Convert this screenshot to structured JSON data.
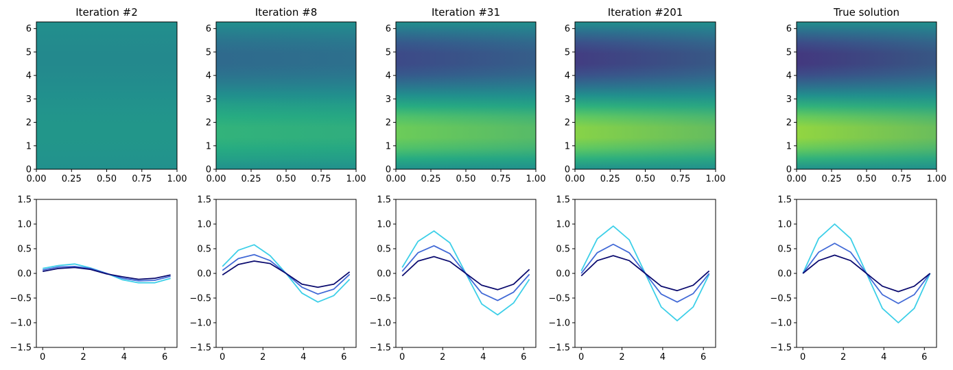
{
  "figure": {
    "description_colors": {
      "line_light": "#3ccfe8",
      "line_mid": "#4169d6",
      "line_dark": "#0a0a6e"
    }
  },
  "chart_data": [
    {
      "type": "heatmap",
      "title": "Iteration #2",
      "xlim": [
        0,
        1
      ],
      "ylim": [
        0,
        6.283
      ],
      "xticks": [
        "0.00",
        "0.25",
        "0.50",
        "0.75",
        "1.00"
      ],
      "yticks": [
        "0",
        "1",
        "2",
        "3",
        "4",
        "5",
        "6"
      ],
      "intensity": 0.08
    },
    {
      "type": "heatmap",
      "title": "Iteration #8",
      "xlim": [
        0,
        1
      ],
      "ylim": [
        0,
        6.283
      ],
      "xticks": [
        "0.00",
        "0.25",
        "0.50",
        "0.75",
        "1.00"
      ],
      "yticks": [
        "0",
        "1",
        "2",
        "3",
        "4",
        "5",
        "6"
      ],
      "intensity": 0.45
    },
    {
      "type": "heatmap",
      "title": "Iteration #31",
      "xlim": [
        0,
        1
      ],
      "ylim": [
        0,
        6.283
      ],
      "xticks": [
        "0.00",
        "0.25",
        "0.50",
        "0.75",
        "1.00"
      ],
      "yticks": [
        "0",
        "1",
        "2",
        "3",
        "4",
        "5",
        "6"
      ],
      "intensity": 0.82
    },
    {
      "type": "heatmap",
      "title": "Iteration #201",
      "xlim": [
        0,
        1
      ],
      "ylim": [
        0,
        6.283
      ],
      "xticks": [
        "0.00",
        "0.25",
        "0.50",
        "0.75",
        "1.00"
      ],
      "yticks": [
        "0",
        "1",
        "2",
        "3",
        "4",
        "5",
        "6"
      ],
      "intensity": 0.95
    },
    {
      "type": "heatmap",
      "title": "True solution",
      "xlim": [
        0,
        1
      ],
      "ylim": [
        0,
        6.283
      ],
      "xticks": [
        "0.00",
        "0.25",
        "0.50",
        "0.75",
        "1.00"
      ],
      "yticks": [
        "0",
        "1",
        "2",
        "3",
        "4",
        "5",
        "6"
      ],
      "intensity": 1.0
    },
    {
      "type": "line",
      "title": "",
      "xlim": [
        -0.31,
        6.6
      ],
      "ylim": [
        -1.5,
        1.5
      ],
      "xticks": [
        "0",
        "2",
        "4",
        "6"
      ],
      "yticks": [
        "−1.5",
        "−1.0",
        "−0.5",
        "0.0",
        "0.5",
        "1.0",
        "1.5"
      ],
      "x": [
        0,
        0.785,
        1.571,
        2.356,
        3.142,
        3.927,
        4.712,
        5.498,
        6.283
      ],
      "series": [
        {
          "name": "light",
          "color": "#3ccfe8",
          "values": [
            0.1,
            0.16,
            0.19,
            0.11,
            0.0,
            -0.13,
            -0.19,
            -0.19,
            -0.1
          ]
        },
        {
          "name": "mid",
          "color": "#4169d6",
          "values": [
            0.07,
            0.13,
            0.14,
            0.1,
            0.0,
            -0.1,
            -0.15,
            -0.14,
            -0.06
          ]
        },
        {
          "name": "dark",
          "color": "#0a0a6e",
          "values": [
            0.04,
            0.1,
            0.12,
            0.08,
            -0.01,
            -0.07,
            -0.12,
            -0.1,
            -0.03
          ]
        }
      ]
    },
    {
      "type": "line",
      "title": "",
      "xlim": [
        -0.31,
        6.6
      ],
      "ylim": [
        -1.5,
        1.5
      ],
      "xticks": [
        "0",
        "2",
        "4",
        "6"
      ],
      "yticks": [
        "−1.5",
        "−1.0",
        "−0.5",
        "0.0",
        "0.5",
        "1.0",
        "1.5"
      ],
      "x": [
        0,
        0.785,
        1.571,
        2.356,
        3.142,
        3.927,
        4.712,
        5.498,
        6.283
      ],
      "series": [
        {
          "name": "light",
          "color": "#3ccfe8",
          "values": [
            0.14,
            0.47,
            0.58,
            0.36,
            0.0,
            -0.4,
            -0.58,
            -0.45,
            -0.12
          ]
        },
        {
          "name": "mid",
          "color": "#4169d6",
          "values": [
            0.06,
            0.3,
            0.38,
            0.26,
            0.0,
            -0.28,
            -0.42,
            -0.32,
            -0.02
          ]
        },
        {
          "name": "dark",
          "color": "#0a0a6e",
          "values": [
            -0.03,
            0.18,
            0.25,
            0.2,
            0.0,
            -0.22,
            -0.28,
            -0.22,
            0.03
          ]
        }
      ]
    },
    {
      "type": "line",
      "title": "",
      "xlim": [
        -0.31,
        6.6
      ],
      "ylim": [
        -1.5,
        1.5
      ],
      "xticks": [
        "0",
        "2",
        "4",
        "6"
      ],
      "yticks": [
        "−1.5",
        "−1.0",
        "−0.5",
        "0.0",
        "0.5",
        "1.0",
        "1.5"
      ],
      "x": [
        0,
        0.785,
        1.571,
        2.356,
        3.142,
        3.927,
        4.712,
        5.498,
        6.283
      ],
      "series": [
        {
          "name": "light",
          "color": "#3ccfe8",
          "values": [
            0.12,
            0.65,
            0.86,
            0.62,
            0.0,
            -0.62,
            -0.84,
            -0.6,
            -0.12
          ]
        },
        {
          "name": "mid",
          "color": "#4169d6",
          "values": [
            0.04,
            0.42,
            0.56,
            0.4,
            0.0,
            -0.4,
            -0.55,
            -0.38,
            -0.02
          ]
        },
        {
          "name": "dark",
          "color": "#0a0a6e",
          "values": [
            -0.05,
            0.25,
            0.34,
            0.24,
            0.0,
            -0.24,
            -0.33,
            -0.22,
            0.08
          ]
        }
      ]
    },
    {
      "type": "line",
      "title": "",
      "xlim": [
        -0.31,
        6.6
      ],
      "ylim": [
        -1.5,
        1.5
      ],
      "xticks": [
        "0",
        "2",
        "4",
        "6"
      ],
      "yticks": [
        "−1.5",
        "−1.0",
        "−0.5",
        "0.0",
        "0.5",
        "1.0",
        "1.5"
      ],
      "x": [
        0,
        0.785,
        1.571,
        2.356,
        3.142,
        3.927,
        4.712,
        5.498,
        6.283
      ],
      "series": [
        {
          "name": "light",
          "color": "#3ccfe8",
          "values": [
            0.05,
            0.7,
            0.96,
            0.68,
            0.0,
            -0.68,
            -0.96,
            -0.68,
            -0.02
          ]
        },
        {
          "name": "mid",
          "color": "#4169d6",
          "values": [
            0.0,
            0.42,
            0.59,
            0.42,
            0.0,
            -0.42,
            -0.58,
            -0.41,
            0.0
          ]
        },
        {
          "name": "dark",
          "color": "#0a0a6e",
          "values": [
            -0.05,
            0.26,
            0.36,
            0.26,
            0.0,
            -0.26,
            -0.35,
            -0.24,
            0.05
          ]
        }
      ]
    },
    {
      "type": "line",
      "title": "",
      "xlim": [
        -0.31,
        6.6
      ],
      "ylim": [
        -1.5,
        1.5
      ],
      "xticks": [
        "0",
        "2",
        "4",
        "6"
      ],
      "yticks": [
        "−1.5",
        "−1.0",
        "−0.5",
        "0.0",
        "0.5",
        "1.0",
        "1.5"
      ],
      "x": [
        0,
        0.785,
        1.571,
        2.356,
        3.142,
        3.927,
        4.712,
        5.498,
        6.283
      ],
      "series": [
        {
          "name": "light",
          "color": "#3ccfe8",
          "values": [
            0.0,
            0.71,
            1.0,
            0.71,
            0.0,
            -0.71,
            -1.0,
            -0.71,
            0.0
          ]
        },
        {
          "name": "mid",
          "color": "#4169d6",
          "values": [
            0.0,
            0.43,
            0.61,
            0.43,
            0.0,
            -0.43,
            -0.61,
            -0.43,
            0.0
          ]
        },
        {
          "name": "dark",
          "color": "#0a0a6e",
          "values": [
            0.0,
            0.26,
            0.37,
            0.26,
            0.0,
            -0.26,
            -0.37,
            -0.26,
            0.0
          ]
        }
      ]
    }
  ]
}
